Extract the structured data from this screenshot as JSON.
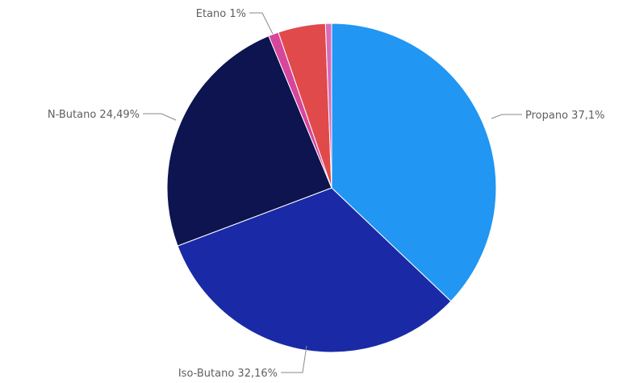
{
  "chart_data": {
    "type": "pie",
    "slices": [
      {
        "label": "Propano",
        "value": 37.1,
        "color": "#2196f3",
        "label_text": "Propano 37,1%"
      },
      {
        "label": "Iso-Butano",
        "value": 32.16,
        "color": "#1a2aa6",
        "label_text": "Iso-Butano 32,16%"
      },
      {
        "label": "N-Butano",
        "value": 24.49,
        "color": "#0d1450",
        "label_text": "N-Butano 24,49%"
      },
      {
        "label": "Etano",
        "value": 1.0,
        "color": "#d6479b",
        "label_text": "Etano 1%"
      },
      {
        "label": "",
        "value": 4.65,
        "color": "#e04a4a",
        "label_text": ""
      },
      {
        "label": "",
        "value": 0.6,
        "color": "#d96bb8",
        "label_text": ""
      }
    ],
    "start_angle_deg": 0,
    "direction": "clockwise",
    "legend": "none",
    "title": ""
  }
}
